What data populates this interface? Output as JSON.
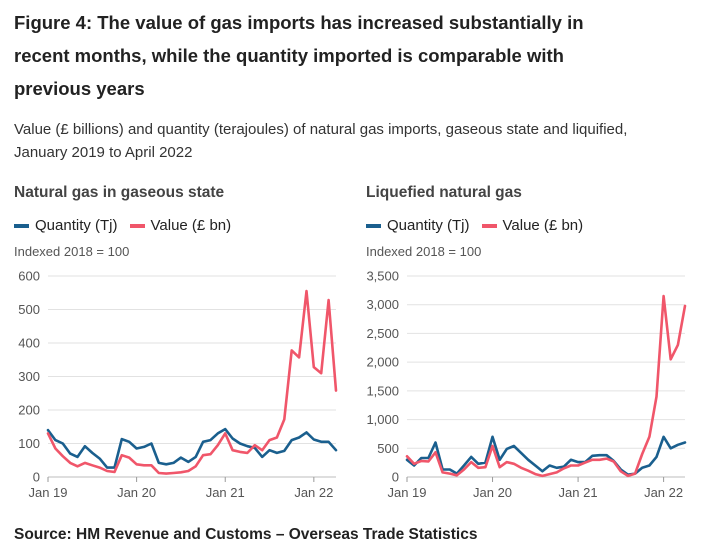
{
  "title": "Figure 4: The value of gas imports has increased substantially in recent months, while the quantity imported is comparable with previous years",
  "subtitle": "Value (£ billions) and quantity (terajoules) of natural gas imports, gaseous state and liquified, January 2019 to April 2022",
  "source": "Source: HM Revenue and Customs – Overseas Trade Statistics",
  "colors": {
    "quantity": "#1a5f8e",
    "value": "#f0566a",
    "grid": "#e2e2e2",
    "axis": "#bdbdbd"
  },
  "chart_data": [
    {
      "type": "line",
      "title": "Natural gas in gaseous state",
      "ylabel": "Indexed 2018 = 100",
      "ylim": [
        0,
        600
      ],
      "yticks": [
        "0",
        "100",
        "200",
        "300",
        "400",
        "500",
        "600"
      ],
      "yticks_values": [
        0,
        100,
        200,
        300,
        400,
        500,
        600
      ],
      "xticks": [
        "Jan 19",
        "Jan 20",
        "Jan 21",
        "Jan 22"
      ],
      "xticks_index": [
        0,
        12,
        24,
        36
      ],
      "legend_position": "top-left",
      "grid": true,
      "series": [
        {
          "name": "Quantity (Tj)",
          "color": "#1a5f8e",
          "values": [
            140,
            110,
            100,
            70,
            60,
            92,
            72,
            55,
            28,
            28,
            113,
            105,
            85,
            90,
            100,
            42,
            38,
            42,
            58,
            45,
            60,
            105,
            110,
            130,
            143,
            115,
            100,
            92,
            87,
            60,
            80,
            72,
            78,
            110,
            118,
            133,
            112,
            105,
            105,
            80
          ]
        },
        {
          "name": "Value (£ bn)",
          "color": "#f0566a",
          "values": [
            130,
            85,
            62,
            42,
            32,
            42,
            35,
            28,
            18,
            15,
            65,
            58,
            38,
            35,
            35,
            12,
            10,
            12,
            14,
            18,
            32,
            65,
            68,
            95,
            130,
            80,
            75,
            72,
            95,
            80,
            110,
            118,
            172,
            378,
            357,
            555,
            328,
            310,
            528,
            258
          ]
        }
      ]
    },
    {
      "type": "line",
      "title": "Liquefied natural gas",
      "ylabel": "Indexed 2018 = 100",
      "ylim": [
        0,
        3500
      ],
      "yticks": [
        "0",
        "500",
        "1,000",
        "1,500",
        "2,000",
        "2,500",
        "3,000",
        "3,500"
      ],
      "yticks_values": [
        0,
        500,
        1000,
        1500,
        2000,
        2500,
        3000,
        3500
      ],
      "xticks": [
        "Jan 19",
        "Jan 20",
        "Jan 21",
        "Jan 22"
      ],
      "xticks_index": [
        0,
        12,
        24,
        36
      ],
      "legend_position": "top-left",
      "grid": true,
      "series": [
        {
          "name": "Quantity (Tj)",
          "color": "#1a5f8e",
          "values": [
            300,
            200,
            330,
            330,
            600,
            130,
            130,
            60,
            200,
            350,
            230,
            250,
            700,
            300,
            490,
            540,
            420,
            300,
            200,
            100,
            200,
            160,
            180,
            300,
            260,
            260,
            370,
            380,
            380,
            280,
            130,
            40,
            60,
            160,
            200,
            350,
            700,
            500,
            560,
            600
          ]
        },
        {
          "name": "Value (£ bn)",
          "color": "#f0566a",
          "values": [
            360,
            230,
            280,
            270,
            430,
            80,
            60,
            30,
            130,
            260,
            160,
            170,
            540,
            170,
            260,
            230,
            160,
            110,
            50,
            20,
            50,
            80,
            150,
            200,
            200,
            250,
            300,
            300,
            320,
            270,
            100,
            20,
            60,
            400,
            700,
            1400,
            3150,
            2050,
            2300,
            2980
          ]
        }
      ]
    }
  ]
}
